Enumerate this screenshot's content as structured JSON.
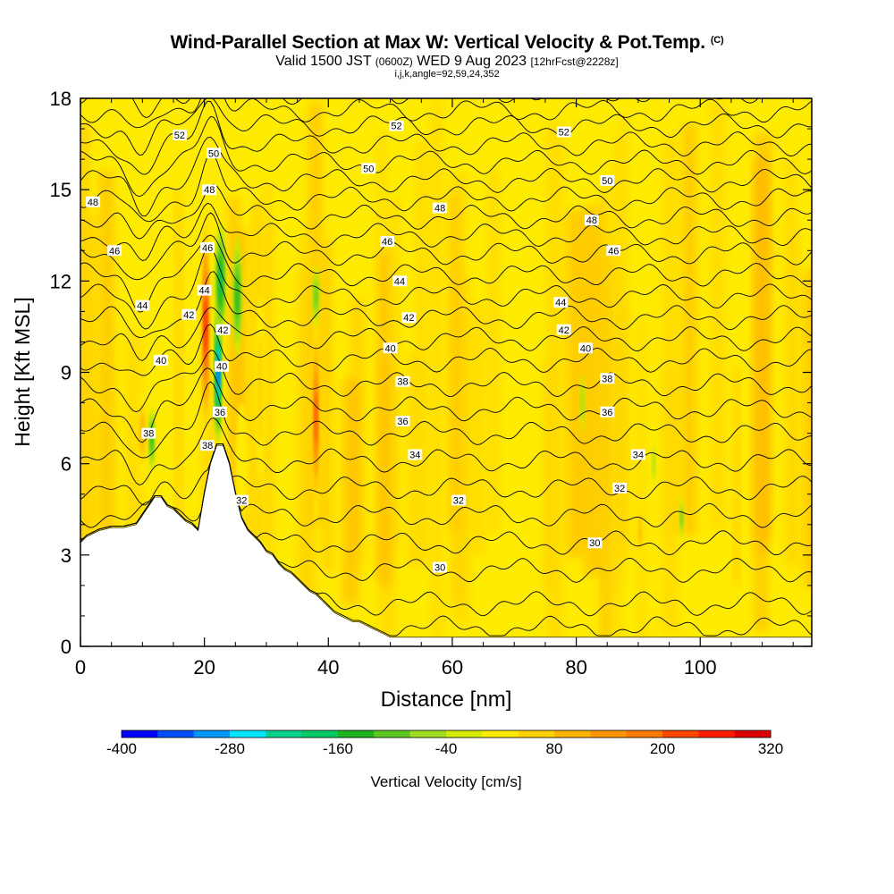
{
  "header": {
    "title": "Wind-Parallel Section at Max W: Vertical Velocity & Pot.Temp.",
    "copyright": "(C)",
    "valid_prefix": "Valid 1500 JST",
    "valid_utc": "(0600Z)",
    "valid_date": "WED 9 Aug 2023",
    "forecast": "[12hrFcst@2228z]",
    "indices": "i,j,k,angle=92,59,24,352"
  },
  "chart_data": {
    "type": "heatmap",
    "title": "Wind-Parallel Section at Max W: Vertical Velocity & Pot.Temp.",
    "xlabel": "Distance [nm]",
    "ylabel": "Height [Kft MSL]",
    "xlim": [
      0,
      118
    ],
    "ylim": [
      0,
      18
    ],
    "x_ticks": [
      0,
      20,
      40,
      60,
      80,
      100
    ],
    "x_tick_labels": [
      "0",
      "20",
      "40",
      "60",
      "80",
      "100"
    ],
    "y_ticks": [
      0,
      3,
      6,
      9,
      12,
      15,
      18
    ],
    "y_tick_labels": [
      "0",
      "3",
      "6",
      "9",
      "12",
      "15",
      "18"
    ],
    "colorbar": {
      "label": "Vertical Velocity [cm/s]",
      "min": -400,
      "max": 320,
      "step": 40,
      "tick_values": [
        -400,
        -280,
        -160,
        -40,
        80,
        200,
        320
      ],
      "tick_labels": [
        "-400",
        "-280",
        "-160",
        "-40",
        "80",
        "200",
        "320"
      ],
      "colors": [
        "#0000ff",
        "#0050ff",
        "#0096ff",
        "#00e6ff",
        "#00d28c",
        "#00c864",
        "#1eb41e",
        "#5ac81e",
        "#a0dc1e",
        "#d2eb00",
        "#ffeb00",
        "#ffd200",
        "#ffb400",
        "#ff9600",
        "#ff7800",
        "#ff4600",
        "#ff1e00",
        "#dc0000",
        "#b4004b",
        "#8c0078",
        "#5a0096"
      ]
    },
    "terrain_profile": {
      "x": [
        0,
        1,
        3,
        5,
        7,
        9,
        10,
        11,
        12,
        13,
        14,
        15,
        16,
        17,
        18,
        19,
        20,
        21,
        22,
        23,
        24,
        25,
        26,
        27,
        28,
        29,
        30,
        31,
        32,
        33,
        34,
        35,
        36,
        37,
        38,
        39,
        40,
        41,
        42,
        43,
        44,
        45,
        46,
        47,
        48,
        49,
        50,
        118
      ],
      "y": [
        3.4,
        3.6,
        3.8,
        3.9,
        3.9,
        4.0,
        4.3,
        4.6,
        4.9,
        4.9,
        4.6,
        4.5,
        4.3,
        4.1,
        4.0,
        3.8,
        5.0,
        6.0,
        6.6,
        6.6,
        6.0,
        5.0,
        4.2,
        3.8,
        3.6,
        3.4,
        3.1,
        3.0,
        2.7,
        2.5,
        2.4,
        2.2,
        2.0,
        1.8,
        1.7,
        1.5,
        1.3,
        1.1,
        1.0,
        0.9,
        0.8,
        0.8,
        0.7,
        0.6,
        0.5,
        0.4,
        0.3,
        0.3
      ]
    },
    "updrafts": [
      {
        "x": 20.2,
        "y": 10.5,
        "width": 1.3,
        "height": 8.0,
        "value": 260
      },
      {
        "x": 38.0,
        "y": 7.5,
        "width": 1.2,
        "height": 7.0,
        "value": 220
      },
      {
        "x": 10.0,
        "y": 7.0,
        "width": 1.5,
        "height": 3.0,
        "value": 130
      },
      {
        "x": 29.0,
        "y": 8.5,
        "width": 1.5,
        "height": 6.0,
        "value": 90
      },
      {
        "x": 90.3,
        "y": 3.8,
        "width": 0.7,
        "height": 2.2,
        "value": 120
      },
      {
        "x": 26.0,
        "y": 6.0,
        "width": 2.0,
        "height": 4.0,
        "value": 40
      }
    ],
    "downdrafts": [
      {
        "x": 22.2,
        "y": 9.0,
        "width": 1.0,
        "height": 5.0,
        "value": -340
      },
      {
        "x": 22.6,
        "y": 12.0,
        "width": 1.7,
        "height": 4.0,
        "value": -190
      },
      {
        "x": 25.3,
        "y": 11.5,
        "width": 1.5,
        "height": 4.0,
        "value": -150
      },
      {
        "x": 11.5,
        "y": 6.8,
        "width": 1.0,
        "height": 2.2,
        "value": -150
      },
      {
        "x": 38.0,
        "y": 11.5,
        "width": 1.1,
        "height": 2.0,
        "value": -120
      },
      {
        "x": 81.0,
        "y": 8.0,
        "width": 0.7,
        "height": 2.0,
        "value": -60
      },
      {
        "x": 97.0,
        "y": 4.2,
        "width": 0.5,
        "height": 1.5,
        "value": -110
      },
      {
        "x": 92.5,
        "y": 6.0,
        "width": 0.5,
        "height": 1.5,
        "value": -60
      }
    ],
    "theta_contours": {
      "levels": [
        30,
        31,
        32,
        33,
        34,
        35,
        36,
        37,
        38,
        39,
        40,
        41,
        42,
        43,
        44,
        45,
        46,
        47,
        48,
        49,
        50,
        51,
        52,
        53,
        54
      ],
      "labels": [
        {
          "level": 30,
          "x": 58.0,
          "y": 2.6
        },
        {
          "level": 30,
          "x": 83.0,
          "y": 3.4
        },
        {
          "level": 32,
          "x": 26.0,
          "y": 4.8
        },
        {
          "level": 32,
          "x": 61.0,
          "y": 4.8
        },
        {
          "level": 32,
          "x": 87.0,
          "y": 5.2
        },
        {
          "level": 34,
          "x": 54.0,
          "y": 6.3
        },
        {
          "level": 34,
          "x": 90.0,
          "y": 6.3
        },
        {
          "level": 36,
          "x": 52.0,
          "y": 7.4
        },
        {
          "level": 36,
          "x": 85.0,
          "y": 7.7
        },
        {
          "level": 36,
          "x": 22.5,
          "y": 7.7
        },
        {
          "level": 38,
          "x": 11.0,
          "y": 7.0
        },
        {
          "level": 38,
          "x": 52.0,
          "y": 8.7
        },
        {
          "level": 38,
          "x": 85.0,
          "y": 8.8
        },
        {
          "level": 38,
          "x": 20.5,
          "y": 6.6
        },
        {
          "level": 40,
          "x": 13.0,
          "y": 9.4
        },
        {
          "level": 40,
          "x": 22.8,
          "y": 9.2
        },
        {
          "level": 40,
          "x": 50.0,
          "y": 9.8
        },
        {
          "level": 40,
          "x": 81.5,
          "y": 9.8
        },
        {
          "level": 42,
          "x": 17.5,
          "y": 10.9
        },
        {
          "level": 42,
          "x": 23.0,
          "y": 10.4
        },
        {
          "level": 42,
          "x": 53.0,
          "y": 10.8
        },
        {
          "level": 42,
          "x": 78.0,
          "y": 10.4
        },
        {
          "level": 44,
          "x": 10.0,
          "y": 11.2
        },
        {
          "level": 44,
          "x": 20.0,
          "y": 11.7
        },
        {
          "level": 44,
          "x": 51.5,
          "y": 12.0
        },
        {
          "level": 44,
          "x": 77.5,
          "y": 11.3
        },
        {
          "level": 46,
          "x": 5.5,
          "y": 13.0
        },
        {
          "level": 46,
          "x": 20.5,
          "y": 13.1
        },
        {
          "level": 46,
          "x": 49.5,
          "y": 13.3
        },
        {
          "level": 46,
          "x": 86.0,
          "y": 13.0
        },
        {
          "level": 48,
          "x": 2.0,
          "y": 14.6
        },
        {
          "level": 48,
          "x": 20.8,
          "y": 15.0
        },
        {
          "level": 48,
          "x": 58.0,
          "y": 14.4
        },
        {
          "level": 48,
          "x": 82.5,
          "y": 14.0
        },
        {
          "level": 50,
          "x": 21.5,
          "y": 16.2
        },
        {
          "level": 50,
          "x": 46.5,
          "y": 15.7
        },
        {
          "level": 50,
          "x": 85.0,
          "y": 15.3
        },
        {
          "level": 52,
          "x": 16.0,
          "y": 16.8
        },
        {
          "level": 52,
          "x": 51.0,
          "y": 17.1
        },
        {
          "level": 52,
          "x": 78.0,
          "y": 16.9
        }
      ]
    }
  }
}
